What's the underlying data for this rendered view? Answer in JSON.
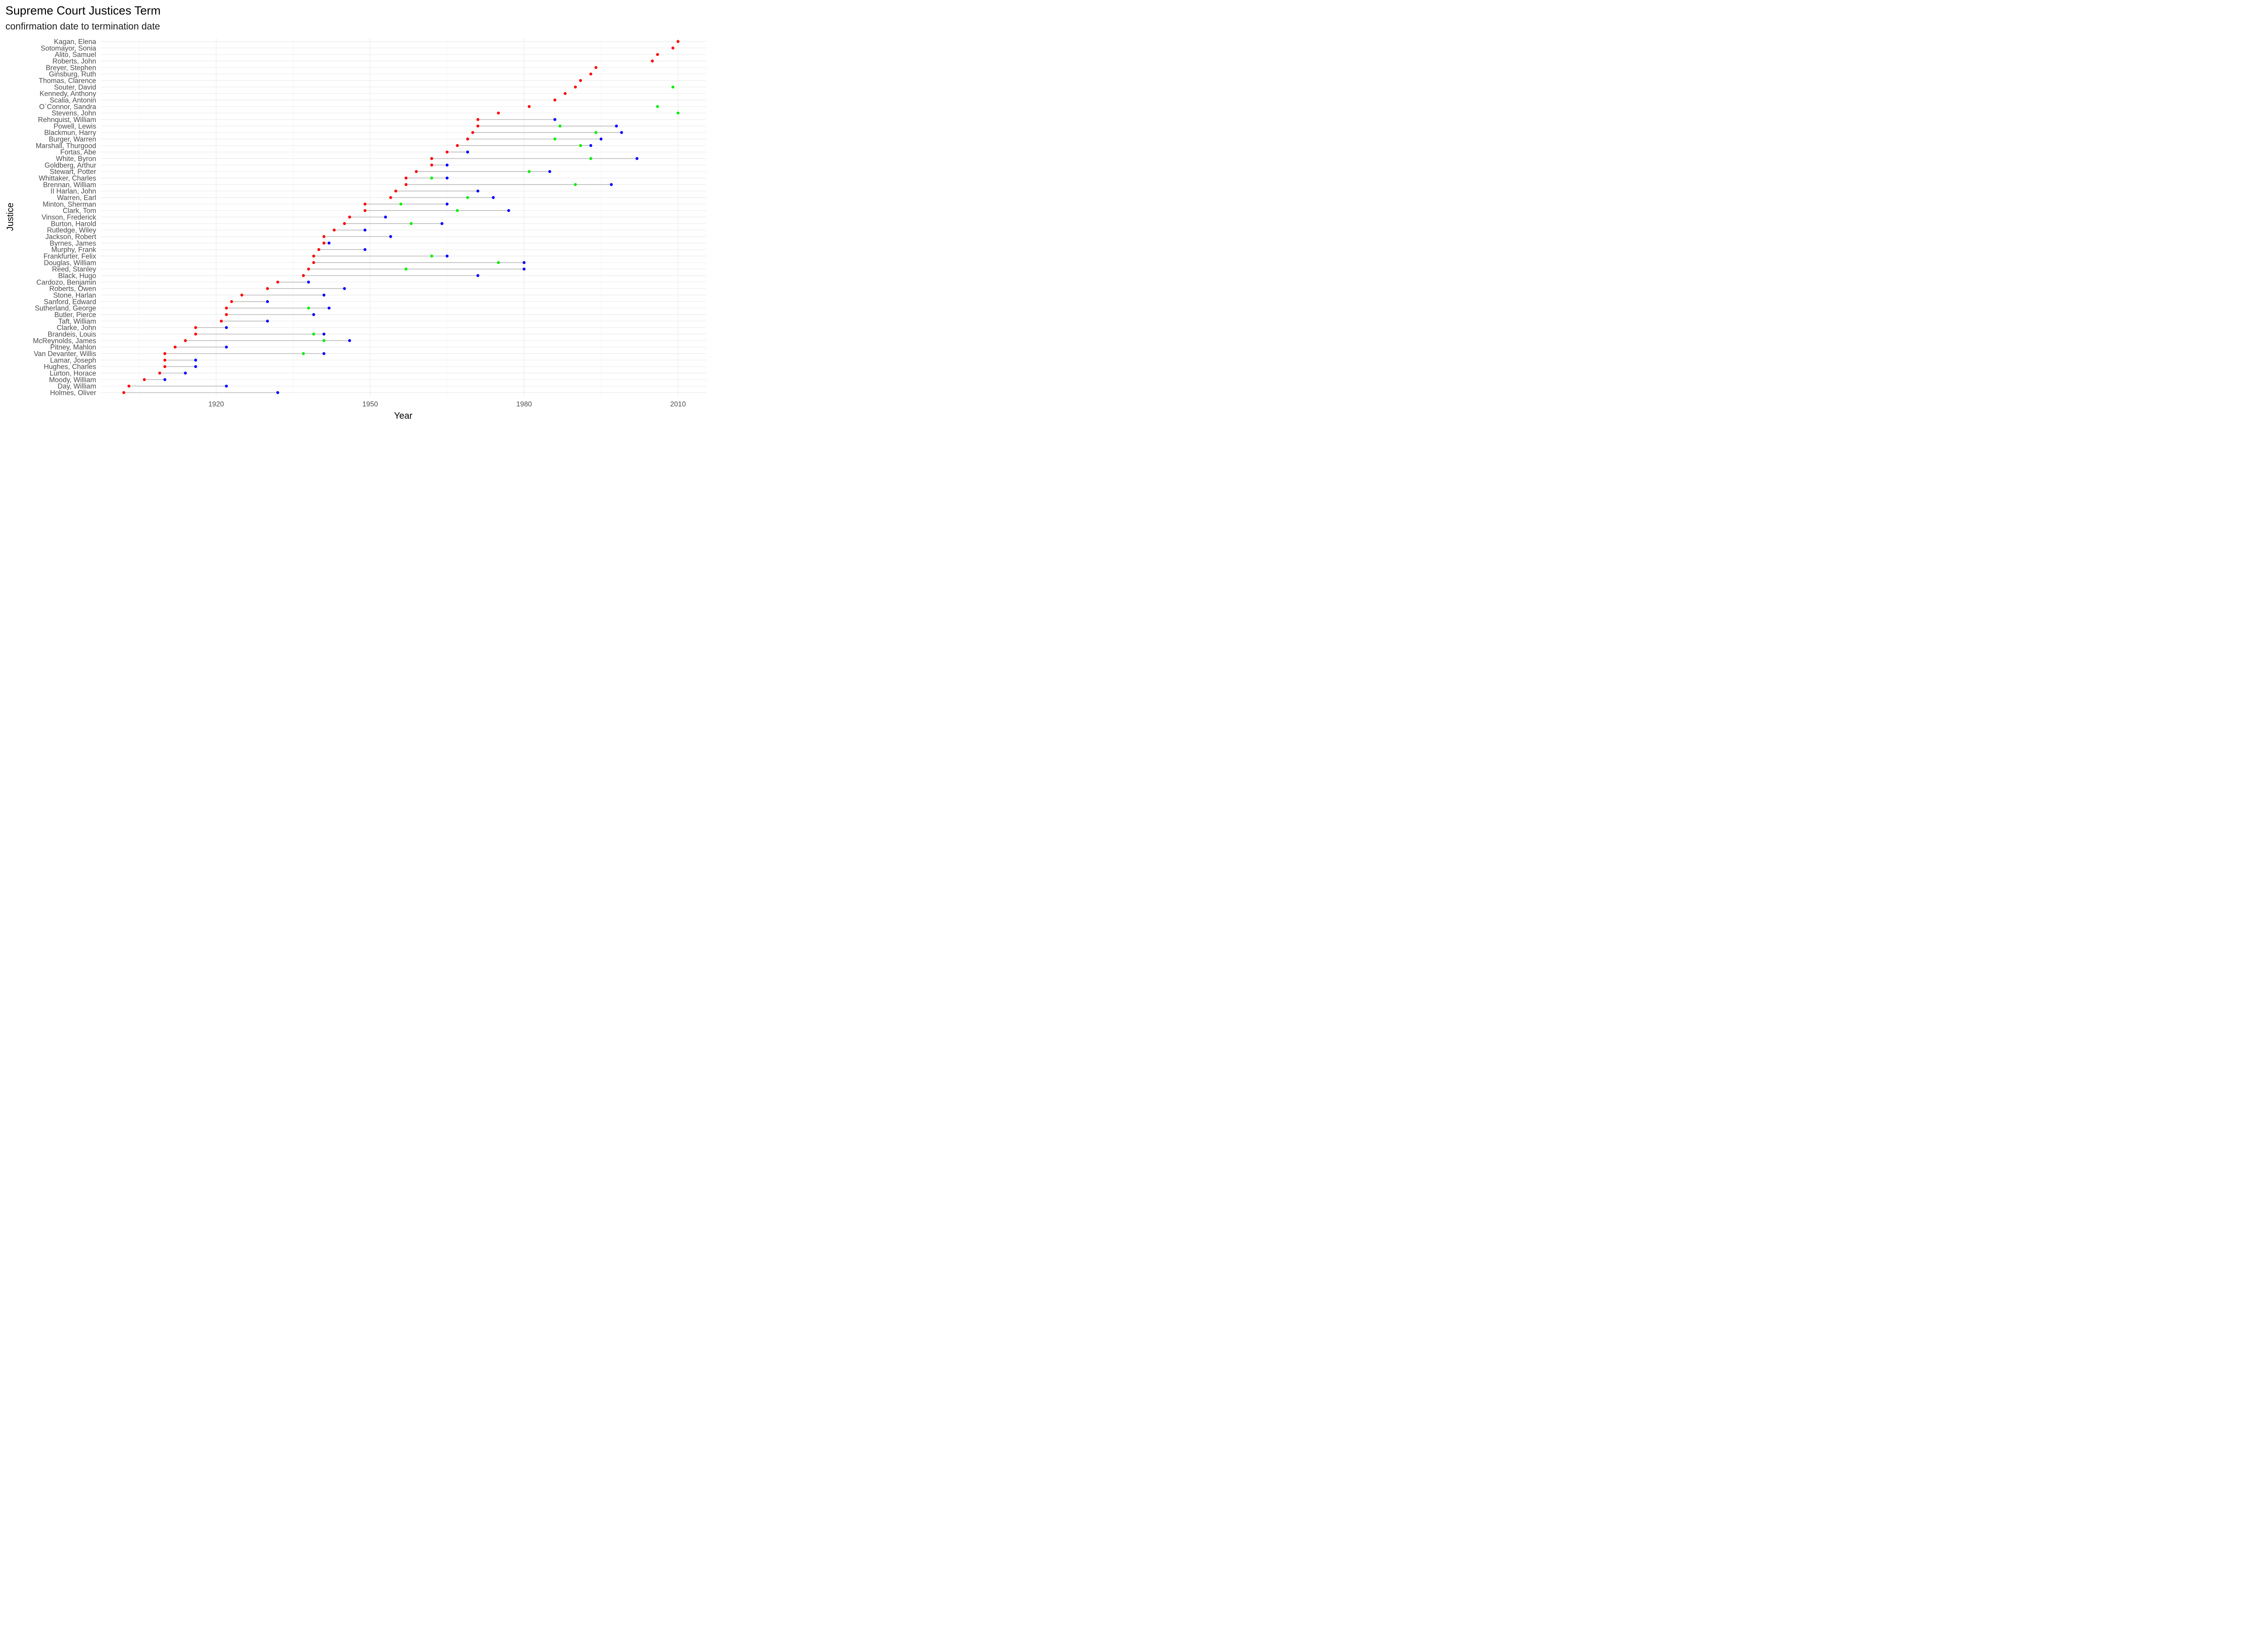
{
  "chart_data": {
    "type": "dumbbell",
    "title": "Supreme Court Justices Term",
    "subtitle": "confirmation date to termination date",
    "xlabel": "Year",
    "ylabel": "Justice",
    "xlim": [
      1897.5,
      2015.5
    ],
    "x_ticks": [
      1920,
      1950,
      1980,
      2010
    ],
    "grid": true,
    "legend": "none",
    "colors": {
      "confirmation": "#ff0000",
      "termination": "#0000ff",
      "middle": "#00ee00",
      "segment": "#bbbbbb",
      "grid_major": "#ebebeb",
      "grid_minor": "#f5f5f5"
    },
    "justices": [
      {
        "name": "Kagan, Elena",
        "start": 2010,
        "end": null,
        "middle": null
      },
      {
        "name": "Sotomayor, Sonia",
        "start": 2009,
        "end": null,
        "middle": null
      },
      {
        "name": "Alito, Samuel",
        "start": 2006,
        "end": null,
        "middle": null
      },
      {
        "name": "Roberts, John",
        "start": 2005,
        "end": null,
        "middle": null
      },
      {
        "name": "Breyer, Stephen",
        "start": 1994,
        "end": null,
        "middle": null
      },
      {
        "name": "Ginsburg, Ruth",
        "start": 1993,
        "end": null,
        "middle": null
      },
      {
        "name": "Thomas, Clarence",
        "start": 1991,
        "end": null,
        "middle": null
      },
      {
        "name": "Souter, David",
        "start": 1990,
        "end": null,
        "middle": 2009
      },
      {
        "name": "Kennedy, Anthony",
        "start": 1988,
        "end": null,
        "middle": null
      },
      {
        "name": "Scalia, Antonin",
        "start": 1986,
        "end": null,
        "middle": null
      },
      {
        "name": "O`Connor, Sandra",
        "start": 1981,
        "end": null,
        "middle": 2006
      },
      {
        "name": "Stevens, John",
        "start": 1975,
        "end": null,
        "middle": 2010
      },
      {
        "name": "Rehnquist, William",
        "start": 1971,
        "end": 1986,
        "middle": null
      },
      {
        "name": "Powell, Lewis",
        "start": 1971,
        "end": 1998,
        "middle": 1987
      },
      {
        "name": "Blackmun, Harry",
        "start": 1970,
        "end": 1999,
        "middle": 1994
      },
      {
        "name": "Burger, Warren",
        "start": 1969,
        "end": 1995,
        "middle": 1986
      },
      {
        "name": "Marshall, Thurgood",
        "start": 1967,
        "end": 1993,
        "middle": 1991
      },
      {
        "name": "Fortas, Abe",
        "start": 1965,
        "end": 1969,
        "middle": null
      },
      {
        "name": "White, Byron",
        "start": 1962,
        "end": 2002,
        "middle": 1993
      },
      {
        "name": "Goldberg, Arthur",
        "start": 1962,
        "end": 1965,
        "middle": null
      },
      {
        "name": "Stewart, Potter",
        "start": 1959,
        "end": 1985,
        "middle": 1981
      },
      {
        "name": "Whittaker, Charles",
        "start": 1957,
        "end": 1965,
        "middle": 1962
      },
      {
        "name": "Brennan, William",
        "start": 1957,
        "end": 1997,
        "middle": 1990
      },
      {
        "name": "II Harlan, John",
        "start": 1955,
        "end": 1971,
        "middle": null
      },
      {
        "name": "Warren, Earl",
        "start": 1954,
        "end": 1974,
        "middle": 1969
      },
      {
        "name": "Minton, Sherman",
        "start": 1949,
        "end": 1965,
        "middle": 1956
      },
      {
        "name": "Clark, Tom",
        "start": 1949,
        "end": 1977,
        "middle": 1967
      },
      {
        "name": "Vinson, Frederick",
        "start": 1946,
        "end": 1953,
        "middle": null
      },
      {
        "name": "Burton, Harold",
        "start": 1945,
        "end": 1964,
        "middle": 1958
      },
      {
        "name": "Rutledge, Wiley",
        "start": 1943,
        "end": 1949,
        "middle": null
      },
      {
        "name": "Jackson, Robert",
        "start": 1941,
        "end": 1954,
        "middle": null
      },
      {
        "name": "Byrnes, James",
        "start": 1941,
        "end": 1942,
        "middle": null
      },
      {
        "name": "Murphy, Frank",
        "start": 1940,
        "end": 1949,
        "middle": null
      },
      {
        "name": "Frankfurter, Felix",
        "start": 1939,
        "end": 1965,
        "middle": 1962
      },
      {
        "name": "Douglas, William",
        "start": 1939,
        "end": 1980,
        "middle": 1975
      },
      {
        "name": "Reed, Stanley",
        "start": 1938,
        "end": 1980,
        "middle": 1957
      },
      {
        "name": "Black, Hugo",
        "start": 1937,
        "end": 1971,
        "middle": null
      },
      {
        "name": "Cardozo, Benjamin",
        "start": 1932,
        "end": 1938,
        "middle": null
      },
      {
        "name": "Roberts, Owen",
        "start": 1930,
        "end": 1945,
        "middle": null
      },
      {
        "name": "Stone, Harlan",
        "start": 1925,
        "end": 1941,
        "middle": null
      },
      {
        "name": "Sanford, Edward",
        "start": 1923,
        "end": 1930,
        "middle": null
      },
      {
        "name": "Sutherland, George",
        "start": 1922,
        "end": 1942,
        "middle": 1938
      },
      {
        "name": "Butler, Pierce",
        "start": 1922,
        "end": 1939,
        "middle": null
      },
      {
        "name": "Taft, William",
        "start": 1921,
        "end": 1930,
        "middle": null
      },
      {
        "name": "Clarke, John",
        "start": 1916,
        "end": 1922,
        "middle": null
      },
      {
        "name": "Brandeis, Louis",
        "start": 1916,
        "end": 1941,
        "middle": 1939
      },
      {
        "name": "McReynolds, James",
        "start": 1914,
        "end": 1946,
        "middle": 1941
      },
      {
        "name": "Pitney, Mahlon",
        "start": 1912,
        "end": 1922,
        "middle": null
      },
      {
        "name": "Van Devanter, Willis",
        "start": 1910,
        "end": 1941,
        "middle": 1937
      },
      {
        "name": "Lamar, Joseph",
        "start": 1910,
        "end": 1916,
        "middle": null
      },
      {
        "name": "Hughes, Charles",
        "start": 1910,
        "end": 1916,
        "middle": null
      },
      {
        "name": "Lurton, Horace",
        "start": 1909,
        "end": 1914,
        "middle": null
      },
      {
        "name": "Moody, William",
        "start": 1906,
        "end": 1910,
        "middle": null
      },
      {
        "name": "Day, William",
        "start": 1903,
        "end": 1922,
        "middle": null
      },
      {
        "name": "Holmes, Oliver",
        "start": 1902,
        "end": 1932,
        "middle": null
      }
    ]
  }
}
